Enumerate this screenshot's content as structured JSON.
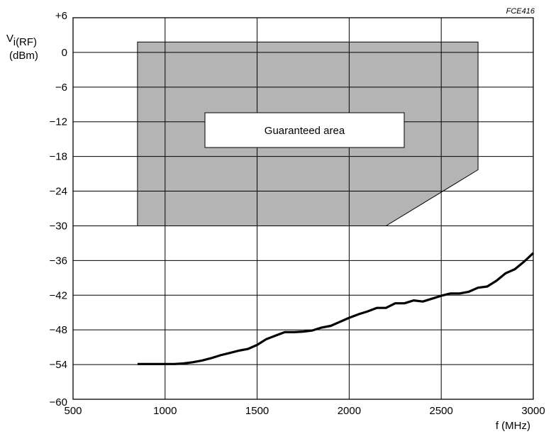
{
  "chart_data": {
    "type": "line",
    "code": "FCE416",
    "ylabel": {
      "main": "V",
      "sub": "i(RF)",
      "unit": "(dBm)"
    },
    "xlabel": "f (MHz)",
    "xlim": [
      500,
      3000
    ],
    "ylim": [
      -60,
      6
    ],
    "x_ticks": [
      500,
      1000,
      1500,
      2000,
      2500,
      3000
    ],
    "y_ticks": [
      6,
      0,
      -6,
      -12,
      -18,
      -24,
      -30,
      -36,
      -42,
      -48,
      -54,
      -60
    ],
    "y_tick_labels": [
      "+6",
      "0",
      "−6",
      "−12",
      "−18",
      "−24",
      "−30",
      "−36",
      "−42",
      "−48",
      "−54",
      "−60"
    ],
    "grid": true,
    "guaranteed_area": {
      "label": "Guaranteed area",
      "polygon": [
        [
          850,
          1.8
        ],
        [
          2700,
          1.8
        ],
        [
          2700,
          -20.3
        ],
        [
          2200,
          -30
        ],
        [
          850,
          -30
        ]
      ],
      "color": "#b4b4b4"
    },
    "series": [
      {
        "color": "#000000",
        "x": [
          850,
          900,
          1000,
          1050,
          1100,
          1150,
          1200,
          1250,
          1300,
          1350,
          1400,
          1450,
          1500,
          1550,
          1600,
          1650,
          1700,
          1750,
          1800,
          1850,
          1900,
          1950,
          2000,
          2050,
          2100,
          2150,
          2200,
          2250,
          2300,
          2350,
          2400,
          2450,
          2500,
          2550,
          2600,
          2650,
          2700,
          2750,
          2800,
          2850,
          2900,
          2950,
          3000
        ],
        "y": [
          -53.9,
          -53.9,
          -53.9,
          -53.9,
          -53.8,
          -53.6,
          -53.3,
          -52.9,
          -52.4,
          -52.0,
          -51.6,
          -51.3,
          -50.6,
          -49.6,
          -49.0,
          -48.4,
          -48.4,
          -48.3,
          -48.1,
          -47.6,
          -47.3,
          -46.6,
          -45.9,
          -45.3,
          -44.8,
          -44.2,
          -44.2,
          -43.4,
          -43.4,
          -42.9,
          -43.1,
          -42.6,
          -42.1,
          -41.7,
          -41.7,
          -41.4,
          -40.7,
          -40.5,
          -39.5,
          -38.2,
          -37.5,
          -36.2,
          -34.7
        ]
      }
    ]
  }
}
